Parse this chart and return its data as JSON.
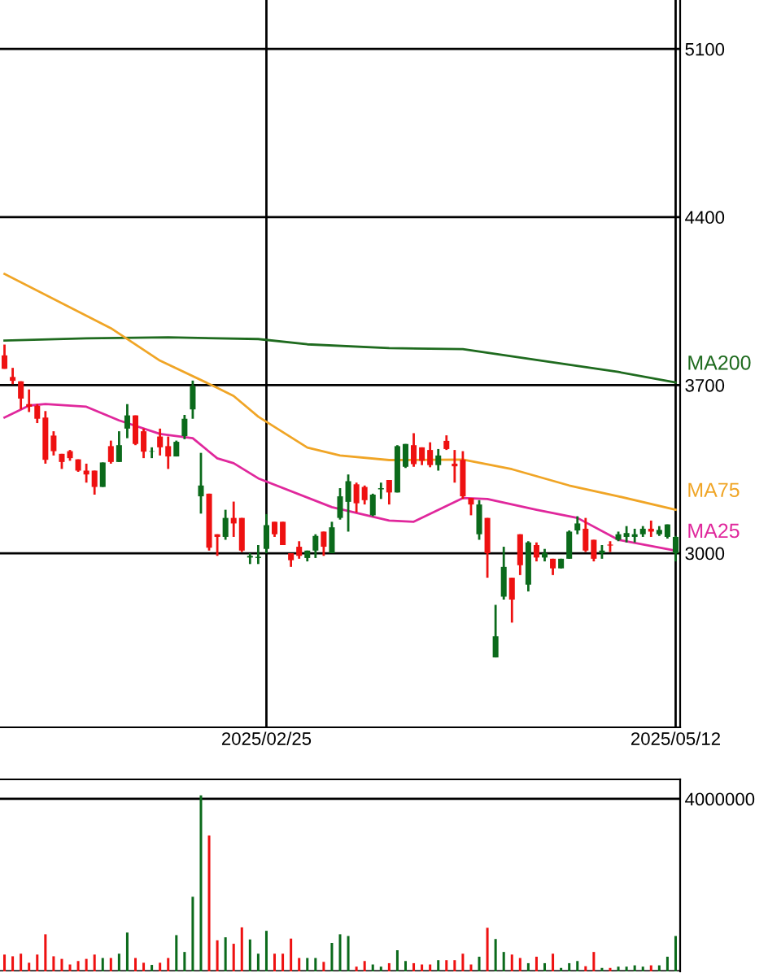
{
  "chart_data": [
    {
      "type": "candlestick",
      "categories": [
        null,
        null,
        null,
        null,
        null,
        null,
        null,
        null,
        null,
        null,
        null,
        null,
        null,
        null,
        null,
        null,
        null,
        null,
        null,
        null,
        null,
        null,
        null,
        null,
        null,
        null,
        null,
        null,
        null,
        null,
        null,
        null,
        "2025/02/25",
        null,
        null,
        null,
        null,
        null,
        null,
        null,
        null,
        null,
        null,
        null,
        null,
        null,
        null,
        null,
        null,
        null,
        null,
        null,
        null,
        null,
        null,
        null,
        null,
        null,
        null,
        null,
        null,
        null,
        null,
        null,
        null,
        null,
        null,
        null,
        null,
        null,
        null,
        null,
        null,
        null,
        null,
        null,
        null,
        null,
        null,
        null,
        null,
        null,
        "2025/05/12"
      ],
      "ohlc": [
        [
          3824,
          3869,
          3768,
          3768
        ],
        [
          3734,
          3772,
          3704,
          3718
        ],
        [
          3716,
          3716,
          3599,
          3644
        ],
        [
          3621,
          3682,
          3588,
          3610
        ],
        [
          3614,
          3621,
          3542,
          3560
        ],
        [
          3565,
          3592,
          3373,
          3389
        ],
        [
          3490,
          3508,
          3407,
          3425
        ],
        [
          3414,
          3414,
          3351,
          3380
        ],
        [
          3425,
          3430,
          3385,
          3396
        ],
        [
          3391,
          3391,
          3339,
          3344
        ],
        [
          3344,
          3373,
          3294,
          3328
        ],
        [
          3344,
          3344,
          3244,
          3276
        ],
        [
          3276,
          3378,
          3276,
          3378
        ],
        [
          3446,
          3469,
          3373,
          3380
        ],
        [
          3380,
          3508,
          3380,
          3450
        ],
        [
          3519,
          3621,
          3479,
          3574
        ],
        [
          3574,
          3574,
          3450,
          3455
        ],
        [
          3508,
          3519,
          3396,
          3423
        ],
        [
          3423,
          3441,
          3396,
          3425
        ],
        [
          3486,
          3519,
          3407,
          3441
        ],
        [
          3446,
          3486,
          3351,
          3403
        ],
        [
          3403,
          3469,
          3403,
          3464
        ],
        [
          3488,
          3576,
          3475,
          3560
        ],
        [
          3599,
          3719,
          3560,
          3696
        ],
        [
          3237,
          3418,
          3165,
          3282
        ],
        [
          3248,
          3248,
          3011,
          3023
        ],
        [
          3079,
          3079,
          2989,
          3068
        ],
        [
          3068,
          3181,
          3056,
          3147
        ],
        [
          3147,
          3215,
          3068,
          3124
        ],
        [
          3147,
          3147,
          3005,
          3011
        ],
        [
          2982,
          3000,
          2955,
          2989
        ],
        [
          2980,
          3034,
          2955,
          2985
        ],
        [
          3018,
          3163,
          3000,
          3117
        ],
        [
          3131,
          3131,
          3068,
          3079
        ],
        [
          3131,
          3131,
          3034,
          3034
        ],
        [
          3000,
          3000,
          2943,
          2971
        ],
        [
          3027,
          3050,
          2977,
          2989
        ],
        [
          2980,
          3011,
          2966,
          3011
        ],
        [
          3011,
          3079,
          2980,
          3072
        ],
        [
          3090,
          3090,
          2989,
          3027
        ],
        [
          3000,
          3131,
          3000,
          3108
        ],
        [
          3147,
          3271,
          3140,
          3237
        ],
        [
          3214,
          3328,
          3090,
          3300
        ],
        [
          3287,
          3294,
          3170,
          3208
        ],
        [
          3276,
          3282,
          3203,
          3221
        ],
        [
          3158,
          3248,
          3154,
          3244
        ],
        [
          3266,
          3294,
          3226,
          3271
        ],
        [
          3305,
          3305,
          3203,
          3253
        ],
        [
          3253,
          3450,
          3253,
          3446
        ],
        [
          3360,
          3455,
          3355,
          3455
        ],
        [
          3450,
          3500,
          3360,
          3371
        ],
        [
          3441,
          3441,
          3367,
          3385
        ],
        [
          3430,
          3462,
          3358,
          3367
        ],
        [
          3367,
          3434,
          3344,
          3407
        ],
        [
          3468,
          3491,
          3430,
          3434
        ],
        [
          3373,
          3430,
          3294,
          3362
        ],
        [
          3389,
          3425,
          3226,
          3237
        ],
        [
          3230,
          3230,
          3158,
          3203
        ],
        [
          3079,
          3221,
          3056,
          3203
        ],
        [
          3147,
          3147,
          2898,
          3000
        ],
        [
          2566,
          2785,
          2566,
          2654
        ],
        [
          2819,
          3027,
          2807,
          2943
        ],
        [
          2898,
          2898,
          2711,
          2807
        ],
        [
          3079,
          3079,
          2909,
          2950
        ],
        [
          2869,
          3050,
          2841,
          3045
        ],
        [
          3034,
          3045,
          2966,
          2982
        ],
        [
          2982,
          3018,
          2966,
          3000
        ],
        [
          2977,
          2977,
          2909,
          2937
        ],
        [
          2937,
          2977,
          2937,
          2977
        ],
        [
          2977,
          3095,
          2977,
          3090
        ],
        [
          3095,
          3154,
          3079,
          3124
        ],
        [
          3102,
          3147,
          3005,
          3011
        ],
        [
          3056,
          3056,
          2966,
          2977
        ],
        [
          3000,
          3034,
          2977,
          3011
        ],
        [
          3036,
          3050,
          3005,
          3032
        ],
        [
          3056,
          3090,
          3050,
          3079
        ],
        [
          3068,
          3113,
          3045,
          3084
        ],
        [
          3068,
          3102,
          3045,
          3079
        ],
        [
          3079,
          3113,
          3068,
          3102
        ],
        [
          3102,
          3136,
          3068,
          3090
        ],
        [
          3079,
          3113,
          3072,
          3097
        ],
        [
          3068,
          3120,
          3061,
          3120
        ],
        [
          3000,
          3072,
          2966,
          3068
        ]
      ],
      "colors": [
        "#ee1111",
        "#ee1111",
        "#ee1111",
        "#ee1111",
        "#ee1111",
        "#ee1111",
        "#ee1111",
        "#ee1111",
        "#ee1111",
        "#ee1111",
        "#ee1111",
        "#ee1111",
        "#0b6a1b",
        "#ee1111",
        "#0b6a1b",
        "#0b6a1b",
        "#ee1111",
        "#ee1111",
        "#0b6a1b",
        "#ee1111",
        "#ee1111",
        "#0b6a1b",
        "#0b6a1b",
        "#0b6a1b",
        "#0b6a1b",
        "#ee1111",
        "#ee1111",
        "#0b6a1b",
        "#ee1111",
        "#ee1111",
        "#0b6a1b",
        "#0b6a1b",
        "#0b6a1b",
        "#ee1111",
        "#ee1111",
        "#ee1111",
        "#ee1111",
        "#0b6a1b",
        "#0b6a1b",
        "#ee1111",
        "#0b6a1b",
        "#0b6a1b",
        "#0b6a1b",
        "#ee1111",
        "#ee1111",
        "#0b6a1b",
        "#0b6a1b",
        "#ee1111",
        "#0b6a1b",
        "#0b6a1b",
        "#ee1111",
        "#ee1111",
        "#ee1111",
        "#0b6a1b",
        "#ee1111",
        "#ee1111",
        "#ee1111",
        "#ee1111",
        "#0b6a1b",
        "#ee1111",
        "#0b6a1b",
        "#0b6a1b",
        "#ee1111",
        "#ee1111",
        "#0b6a1b",
        "#ee1111",
        "#0b6a1b",
        "#ee1111",
        "#0b6a1b",
        "#0b6a1b",
        "#0b6a1b",
        "#ee1111",
        "#ee1111",
        "#0b6a1b",
        "#ee1111",
        "#0b6a1b",
        "#0b6a1b",
        "#0b6a1b",
        "#0b6a1b",
        "#ee1111",
        "#0b6a1b",
        "#0b6a1b",
        "#0b6a1b"
      ],
      "series": [
        {
          "name": "MA200",
          "type": "line",
          "color": "#1f6b1f",
          "values": [
            3886,
            null,
            null,
            null,
            null,
            null,
            null,
            null,
            null,
            null,
            3895,
            null,
            null,
            null,
            null,
            null,
            null,
            null,
            null,
            null,
            3899,
            null,
            null,
            null,
            null,
            null,
            null,
            null,
            null,
            null,
            null,
            3892,
            null,
            null,
            null,
            null,
            null,
            3870,
            null,
            null,
            null,
            null,
            null,
            null,
            null,
            null,
            null,
            3854,
            null,
            null,
            null,
            null,
            null,
            null,
            null,
            null,
            3850,
            null,
            null,
            null,
            null,
            null,
            null,
            null,
            null,
            null,
            null,
            3795,
            null,
            null,
            null,
            null,
            null,
            null,
            null,
            3755,
            null,
            null,
            null,
            null,
            null,
            null,
            3711
          ]
        },
        {
          "name": "MA75",
          "type": "line",
          "color": "#f0a526",
          "values": [
            4163,
            null,
            null,
            null,
            null,
            null,
            null,
            null,
            null,
            null,
            null,
            null,
            null,
            3937,
            null,
            null,
            null,
            null,
            null,
            3802,
            null,
            null,
            null,
            null,
            null,
            null,
            3689,
            null,
            3655,
            null,
            null,
            3569,
            null,
            null,
            null,
            null,
            null,
            3440,
            null,
            null,
            null,
            3407,
            null,
            null,
            null,
            null,
            null,
            3388,
            null,
            null,
            null,
            null,
            null,
            null,
            null,
            null,
            3390,
            null,
            null,
            null,
            null,
            null,
            3350,
            null,
            null,
            null,
            null,
            null,
            null,
            3282,
            null,
            null,
            null,
            null,
            null,
            3237,
            null,
            null,
            null,
            null,
            null,
            null,
            3181
          ]
        },
        {
          "name": "MA25",
          "type": "line",
          "color": "#e0289c",
          "values": [
            3565,
            null,
            null,
            3615,
            null,
            3621,
            null,
            null,
            null,
            null,
            3610,
            null,
            null,
            null,
            3553,
            null,
            null,
            null,
            null,
            3497,
            null,
            null,
            null,
            3479,
            null,
            null,
            3395,
            null,
            3375,
            null,
            null,
            3312,
            null,
            null,
            null,
            null,
            null,
            null,
            null,
            null,
            3192,
            null,
            null,
            null,
            null,
            null,
            null,
            3136,
            null,
            null,
            3131,
            null,
            null,
            null,
            null,
            null,
            3230,
            null,
            null,
            3226,
            null,
            null,
            null,
            null,
            null,
            3181,
            null,
            null,
            null,
            null,
            3147,
            null,
            null,
            null,
            null,
            3056,
            null,
            null,
            null,
            null,
            null,
            null,
            3011
          ]
        }
      ],
      "ylim": [
        2275,
        5304
      ],
      "yticks": [
        3000,
        3700,
        4400,
        5100
      ],
      "grid": true
    },
    {
      "type": "bar",
      "categories": [
        null,
        null,
        null,
        null,
        null,
        null,
        null,
        null,
        null,
        null,
        null,
        null,
        null,
        null,
        null,
        null,
        null,
        null,
        null,
        null,
        null,
        null,
        null,
        null,
        null,
        null,
        null,
        null,
        null,
        null,
        null,
        null,
        null,
        null,
        null,
        null,
        null,
        null,
        null,
        null,
        null,
        null,
        null,
        null,
        null,
        null,
        null,
        null,
        null,
        null,
        null,
        null,
        null,
        null,
        null,
        null,
        null,
        null,
        null,
        null,
        null,
        null,
        null,
        null,
        null,
        null,
        null,
        null,
        null,
        null,
        null,
        null,
        null,
        null,
        null,
        null,
        null,
        null,
        null,
        null,
        null,
        null,
        null
      ],
      "values": [
        390000,
        350000,
        410000,
        200000,
        390000,
        860000,
        350000,
        290000,
        160000,
        240000,
        290000,
        390000,
        310000,
        310000,
        410000,
        900000,
        310000,
        200000,
        150000,
        200000,
        310000,
        840000,
        450000,
        1730000,
        4080000,
        3150000,
        720000,
        790000,
        640000,
        1020000,
        740000,
        410000,
        940000,
        410000,
        410000,
        760000,
        310000,
        310000,
        310000,
        220000,
        660000,
        860000,
        820000,
        110000,
        240000,
        160000,
        110000,
        190000,
        490000,
        240000,
        190000,
        160000,
        160000,
        260000,
        260000,
        260000,
        410000,
        160000,
        340000,
        1010000,
        750000,
        450000,
        390000,
        310000,
        190000,
        340000,
        190000,
        410000,
        80000,
        190000,
        240000,
        120000,
        450000,
        80000,
        80000,
        110000,
        110000,
        140000,
        110000,
        140000,
        140000,
        340000,
        820000
      ],
      "colors": [
        "#ee1111",
        "#ee1111",
        "#ee1111",
        "#ee1111",
        "#ee1111",
        "#ee1111",
        "#ee1111",
        "#ee1111",
        "#ee1111",
        "#ee1111",
        "#ee1111",
        "#ee1111",
        "#0b6a1b",
        "#ee1111",
        "#0b6a1b",
        "#0b6a1b",
        "#ee1111",
        "#ee1111",
        "#0b6a1b",
        "#ee1111",
        "#ee1111",
        "#0b6a1b",
        "#0b6a1b",
        "#0b6a1b",
        "#0b6a1b",
        "#ee1111",
        "#ee1111",
        "#0b6a1b",
        "#ee1111",
        "#ee1111",
        "#0b6a1b",
        "#0b6a1b",
        "#0b6a1b",
        "#ee1111",
        "#ee1111",
        "#ee1111",
        "#ee1111",
        "#0b6a1b",
        "#0b6a1b",
        "#ee1111",
        "#0b6a1b",
        "#0b6a1b",
        "#0b6a1b",
        "#ee1111",
        "#ee1111",
        "#0b6a1b",
        "#0b6a1b",
        "#ee1111",
        "#0b6a1b",
        "#0b6a1b",
        "#ee1111",
        "#ee1111",
        "#ee1111",
        "#0b6a1b",
        "#ee1111",
        "#ee1111",
        "#ee1111",
        "#ee1111",
        "#0b6a1b",
        "#ee1111",
        "#0b6a1b",
        "#0b6a1b",
        "#ee1111",
        "#ee1111",
        "#0b6a1b",
        "#ee1111",
        "#0b6a1b",
        "#ee1111",
        "#0b6a1b",
        "#0b6a1b",
        "#0b6a1b",
        "#ee1111",
        "#ee1111",
        "#0b6a1b",
        "#ee1111",
        "#0b6a1b",
        "#0b6a1b",
        "#0b6a1b",
        "#0b6a1b",
        "#ee1111",
        "#0b6a1b",
        "#0b6a1b",
        "#0b6a1b"
      ],
      "ylim": [
        0,
        4450000
      ],
      "yticks": [
        {
          "value": 0,
          "label": null
        },
        4000000
      ],
      "grid": "y",
      "tick_labels": "y"
    }
  ]
}
